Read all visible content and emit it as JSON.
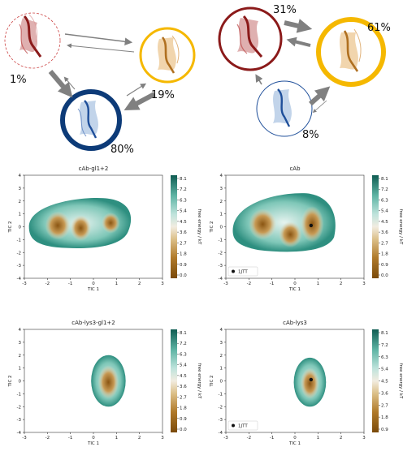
{
  "states": {
    "left": {
      "red_pct": "1%",
      "yellow_pct": "19%",
      "blue_pct": "80%"
    },
    "right": {
      "red_pct": "31%",
      "yellow_pct": "61%",
      "blue_pct": "8%"
    }
  },
  "colors": {
    "red": "#8b1a1a",
    "yellow": "#f5b800",
    "blue": "#0d3b78",
    "arrow": "#808080"
  },
  "panels": [
    {
      "title": "cAb-gl1+2",
      "xlabel": "TIC 1",
      "ylabel": "TIC 2",
      "cblabel": "free energy / kT",
      "legend": ""
    },
    {
      "title": "cAb",
      "xlabel": "TIC 1",
      "ylabel": "TIC 2",
      "cblabel": "free energy / kT",
      "legend": "1JTT"
    },
    {
      "title": "cAb-lys3-gl1+2",
      "xlabel": "TIC 1",
      "ylabel": "TIC 2",
      "cblabel": "free energy / kT",
      "legend": ""
    },
    {
      "title": "cAb-lys3",
      "xlabel": "TIC 1",
      "ylabel": "TIC 2",
      "cblabel": "free energy / kT",
      "legend": "1JTT"
    }
  ],
  "axes": {
    "x_ticks": [
      "-3",
      "-2",
      "-1",
      "0",
      "1",
      "2",
      "3"
    ],
    "y_ticks": [
      "4",
      "3",
      "2",
      "1",
      "0",
      "-1",
      "-2",
      "-3",
      "-4"
    ]
  },
  "colorbar": {
    "ticks": [
      "8.1",
      "7.2",
      "6.3",
      "5.4",
      "4.5",
      "3.6",
      "2.7",
      "1.8",
      "0.9",
      "0.0"
    ],
    "ticks_last": [
      "8.1",
      "7.2",
      "6.3",
      "5.4",
      "4.5",
      "3.6",
      "2.7",
      "1.8",
      "0.9"
    ]
  }
}
